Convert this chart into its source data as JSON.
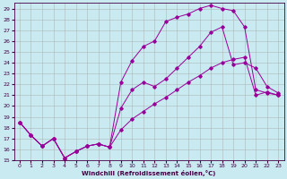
{
  "xlabel": "Windchill (Refroidissement éolien,°C)",
  "bg_color": "#c8eaf0",
  "line_color": "#990099",
  "grid_color": "#aaaaaa",
  "xlim": [
    -0.5,
    23.5
  ],
  "ylim": [
    15,
    29.5
  ],
  "xticks": [
    0,
    1,
    2,
    3,
    4,
    5,
    6,
    7,
    8,
    9,
    10,
    11,
    12,
    13,
    14,
    15,
    16,
    17,
    18,
    19,
    20,
    21,
    22,
    23
  ],
  "yticks": [
    15,
    16,
    17,
    18,
    19,
    20,
    21,
    22,
    23,
    24,
    25,
    26,
    27,
    28,
    29
  ],
  "series1_x": [
    0,
    1,
    2,
    3,
    4,
    5,
    6,
    7,
    8,
    9,
    10,
    11,
    12,
    13,
    14,
    15,
    16,
    17,
    18,
    19,
    20,
    21,
    22,
    23
  ],
  "series1_y": [
    18.5,
    17.3,
    16.3,
    17.0,
    15.2,
    15.8,
    16.3,
    16.5,
    16.2,
    22.2,
    24.2,
    25.5,
    26.0,
    27.8,
    28.2,
    28.5,
    29.0,
    29.3,
    29.0,
    28.8,
    27.3,
    21.5,
    21.2,
    21.0
  ],
  "series2_x": [
    0,
    1,
    2,
    3,
    4,
    5,
    6,
    7,
    8,
    9,
    10,
    11,
    12,
    13,
    14,
    15,
    16,
    17,
    18,
    19,
    20,
    21,
    22,
    23
  ],
  "series2_y": [
    18.5,
    17.3,
    16.3,
    17.0,
    15.2,
    15.8,
    16.3,
    16.5,
    16.2,
    19.8,
    21.5,
    22.2,
    21.8,
    22.5,
    23.5,
    24.5,
    25.5,
    26.8,
    27.3,
    23.8,
    24.0,
    23.5,
    21.8,
    21.2
  ],
  "series3_x": [
    0,
    1,
    2,
    3,
    4,
    5,
    6,
    7,
    8,
    9,
    10,
    11,
    12,
    13,
    14,
    15,
    16,
    17,
    18,
    19,
    20,
    21,
    22,
    23
  ],
  "series3_y": [
    18.5,
    17.3,
    16.3,
    17.0,
    15.2,
    15.8,
    16.3,
    16.5,
    16.2,
    17.8,
    18.8,
    19.5,
    20.2,
    20.8,
    21.5,
    22.2,
    22.8,
    23.5,
    24.0,
    24.3,
    24.5,
    21.0,
    21.3,
    21.0
  ]
}
